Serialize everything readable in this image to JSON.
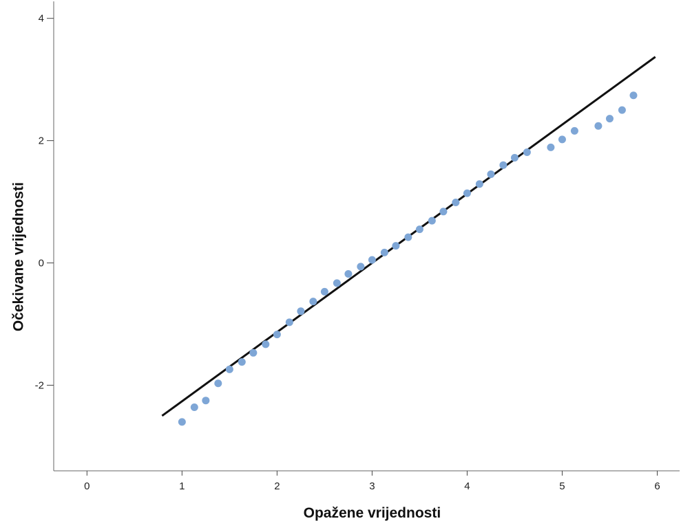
{
  "chart_data": {
    "type": "scatter",
    "title": "",
    "xlabel": "Opažene vrijednosti",
    "ylabel": "Očekivane vrijednosti",
    "xlim": [
      -0.35,
      6.25
    ],
    "ylim": [
      -3.4,
      4.3
    ],
    "x_ticks": [
      0,
      1,
      2,
      3,
      4,
      5,
      6
    ],
    "y_ticks": [
      -2,
      0,
      2,
      4
    ],
    "grid": false,
    "legend": "none",
    "point_color": "#7ea6d6",
    "line_color": "#111111",
    "reference_line": {
      "x": [
        0.79,
        5.98
      ],
      "y": [
        -2.5,
        3.37
      ]
    },
    "series": [
      {
        "x": [
          1.0,
          1.13,
          1.25,
          1.38,
          1.5,
          1.63,
          1.75,
          1.88,
          2.0,
          2.13,
          2.25,
          2.38,
          2.5,
          2.63,
          2.75,
          2.88,
          3.0,
          3.13,
          3.25,
          3.38,
          3.5,
          3.63,
          3.75,
          3.88,
          4.0,
          4.13,
          4.25,
          4.38,
          4.5,
          4.63,
          4.88,
          5.0,
          5.13,
          5.38,
          5.5,
          5.63,
          5.75
        ],
        "y": [
          -2.6,
          -2.36,
          -2.25,
          -1.97,
          -1.74,
          -1.62,
          -1.47,
          -1.33,
          -1.17,
          -0.97,
          -0.79,
          -0.63,
          -0.47,
          -0.33,
          -0.18,
          -0.06,
          0.05,
          0.17,
          0.28,
          0.42,
          0.55,
          0.69,
          0.84,
          0.99,
          1.14,
          1.29,
          1.45,
          1.6,
          1.72,
          1.81,
          1.89,
          2.02,
          2.16,
          2.24,
          2.36,
          2.5,
          2.74
        ]
      }
    ]
  }
}
